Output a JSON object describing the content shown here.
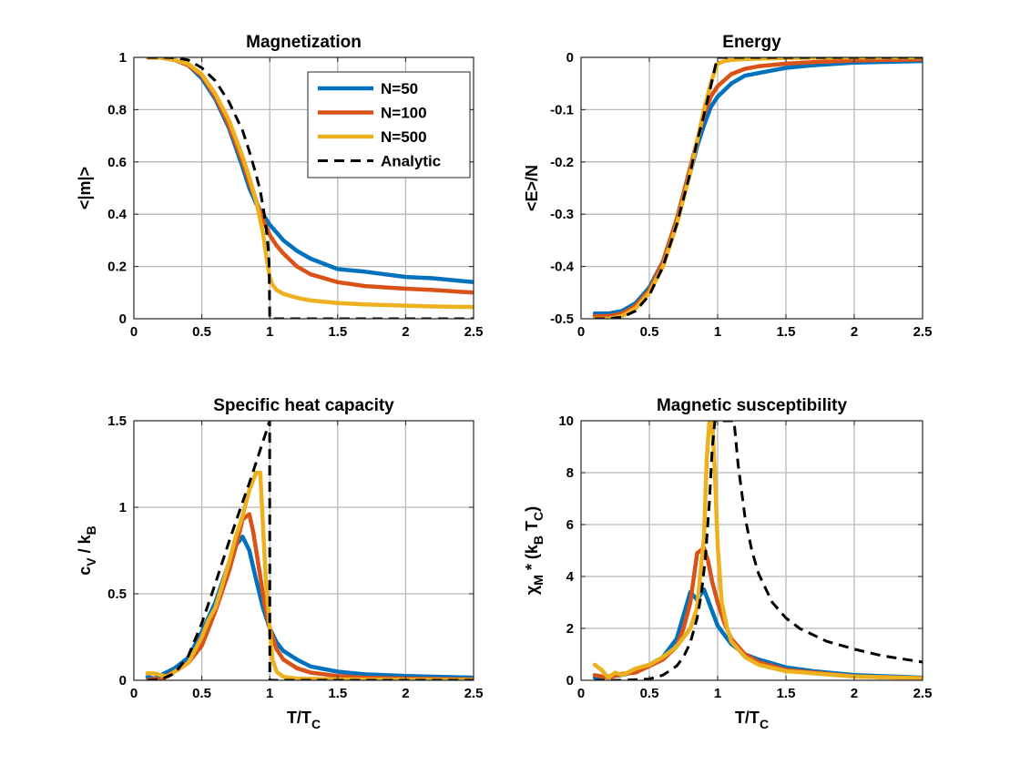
{
  "figure": {
    "background": "#ffffff",
    "colors": {
      "N=50": "#0072BD",
      "N=100": "#D95319",
      "N=500": "#EDB120",
      "Analytic": "#000000"
    }
  },
  "chart_data": [
    {
      "type": "line",
      "title": "Magnetization",
      "xlabel": "",
      "ylabel": "<|m|>",
      "xlim": [
        0,
        2.5
      ],
      "ylim": [
        0,
        1
      ],
      "xticks": [
        0,
        0.5,
        1,
        1.5,
        2,
        2.5
      ],
      "xtick_labels": [
        "0",
        "0.5",
        "1",
        "1.5",
        "2",
        "2.5"
      ],
      "yticks": [
        0,
        0.2,
        0.4,
        0.6,
        0.8,
        1
      ],
      "ytick_labels": [
        "0",
        "0.2",
        "0.4",
        "0.6",
        "0.8",
        "1"
      ],
      "grid": true,
      "legend": {
        "placement": "top-right",
        "entries": [
          "N=50",
          "N=100",
          "N=500",
          "Analytic"
        ]
      },
      "series": [
        {
          "name": "N=50",
          "color": "#0072BD",
          "dashed": false,
          "x": [
            0.1,
            0.2,
            0.3,
            0.4,
            0.5,
            0.6,
            0.7,
            0.8,
            0.85,
            0.9,
            0.95,
            1.0,
            1.05,
            1.1,
            1.2,
            1.3,
            1.5,
            1.7,
            2.0,
            2.2,
            2.5
          ],
          "y": [
            1,
            0.999,
            0.99,
            0.97,
            0.92,
            0.84,
            0.73,
            0.58,
            0.5,
            0.44,
            0.4,
            0.36,
            0.33,
            0.3,
            0.26,
            0.23,
            0.19,
            0.18,
            0.16,
            0.155,
            0.14
          ]
        },
        {
          "name": "N=100",
          "color": "#D95319",
          "dashed": false,
          "x": [
            0.1,
            0.2,
            0.3,
            0.4,
            0.5,
            0.6,
            0.7,
            0.8,
            0.85,
            0.9,
            0.95,
            1.0,
            1.05,
            1.1,
            1.2,
            1.3,
            1.5,
            1.7,
            2.0,
            2.2,
            2.5
          ],
          "y": [
            1,
            0.999,
            0.99,
            0.97,
            0.93,
            0.85,
            0.74,
            0.6,
            0.52,
            0.45,
            0.38,
            0.32,
            0.28,
            0.25,
            0.2,
            0.17,
            0.14,
            0.125,
            0.115,
            0.11,
            0.1
          ]
        },
        {
          "name": "N=500",
          "color": "#EDB120",
          "dashed": false,
          "x": [
            0.1,
            0.2,
            0.3,
            0.4,
            0.5,
            0.6,
            0.7,
            0.8,
            0.85,
            0.9,
            0.95,
            0.98,
            1.0,
            1.02,
            1.05,
            1.1,
            1.2,
            1.3,
            1.5,
            1.7,
            2.0,
            2.2,
            2.5
          ],
          "y": [
            1,
            0.999,
            0.99,
            0.975,
            0.935,
            0.86,
            0.76,
            0.62,
            0.54,
            0.45,
            0.33,
            0.22,
            0.16,
            0.13,
            0.11,
            0.095,
            0.08,
            0.07,
            0.06,
            0.055,
            0.05,
            0.047,
            0.045
          ]
        },
        {
          "name": "Analytic",
          "color": "#000000",
          "dashed": true,
          "x": [
            0.1,
            0.2,
            0.3,
            0.4,
            0.5,
            0.6,
            0.7,
            0.8,
            0.85,
            0.9,
            0.93,
            0.96,
            0.98,
            0.99,
            0.995,
            1.0,
            1.5,
            2.0,
            2.5
          ],
          "y": [
            1,
            1,
            0.999,
            0.99,
            0.96,
            0.91,
            0.83,
            0.72,
            0.64,
            0.55,
            0.49,
            0.4,
            0.32,
            0.26,
            0.21,
            0.0,
            0.0,
            0.0,
            0.0
          ]
        }
      ]
    },
    {
      "type": "line",
      "title": "Energy",
      "xlabel": "",
      "ylabel": "<E>/N",
      "xlim": [
        0,
        2.5
      ],
      "ylim": [
        -0.5,
        0
      ],
      "xticks": [
        0,
        0.5,
        1,
        1.5,
        2,
        2.5
      ],
      "xtick_labels": [
        "0",
        "0.5",
        "1",
        "1.5",
        "2",
        "2.5"
      ],
      "yticks": [
        -0.5,
        -0.4,
        -0.3,
        -0.2,
        -0.1,
        0
      ],
      "ytick_labels": [
        "-0.5",
        "-0.4",
        "-0.3",
        "-0.2",
        "-0.1",
        "0"
      ],
      "grid": true,
      "series": [
        {
          "name": "N=50",
          "color": "#0072BD",
          "dashed": false,
          "x": [
            0.1,
            0.2,
            0.3,
            0.4,
            0.5,
            0.6,
            0.7,
            0.8,
            0.85,
            0.9,
            0.95,
            1.0,
            1.1,
            1.2,
            1.3,
            1.5,
            1.7,
            2.0,
            2.5
          ],
          "y": [
            -0.49,
            -0.49,
            -0.485,
            -0.47,
            -0.44,
            -0.39,
            -0.31,
            -0.22,
            -0.17,
            -0.13,
            -0.095,
            -0.075,
            -0.05,
            -0.035,
            -0.03,
            -0.02,
            -0.015,
            -0.01,
            -0.007
          ]
        },
        {
          "name": "N=100",
          "color": "#D95319",
          "dashed": false,
          "x": [
            0.1,
            0.2,
            0.3,
            0.4,
            0.5,
            0.6,
            0.7,
            0.8,
            0.85,
            0.9,
            0.95,
            1.0,
            1.1,
            1.2,
            1.3,
            1.5,
            1.7,
            2.0,
            2.5
          ],
          "y": [
            -0.495,
            -0.495,
            -0.49,
            -0.475,
            -0.445,
            -0.39,
            -0.31,
            -0.21,
            -0.16,
            -0.11,
            -0.075,
            -0.055,
            -0.032,
            -0.022,
            -0.017,
            -0.012,
            -0.009,
            -0.006,
            -0.004
          ]
        },
        {
          "name": "N=500",
          "color": "#EDB120",
          "dashed": false,
          "x": [
            0.1,
            0.2,
            0.3,
            0.4,
            0.5,
            0.6,
            0.7,
            0.8,
            0.85,
            0.9,
            0.95,
            0.98,
            1.0,
            1.05,
            1.1,
            1.2,
            1.5,
            2.0,
            2.5
          ],
          "y": [
            -0.5,
            -0.5,
            -0.495,
            -0.48,
            -0.45,
            -0.4,
            -0.32,
            -0.22,
            -0.16,
            -0.1,
            -0.05,
            -0.025,
            -0.012,
            -0.007,
            -0.005,
            -0.003,
            -0.001,
            0,
            0
          ]
        },
        {
          "name": "Analytic",
          "color": "#000000",
          "dashed": true,
          "x": [
            0.1,
            0.2,
            0.3,
            0.4,
            0.5,
            0.6,
            0.7,
            0.8,
            0.85,
            0.9,
            0.95,
            0.98,
            1.0,
            1.5,
            2.0,
            2.5
          ],
          "y": [
            -0.5,
            -0.5,
            -0.497,
            -0.485,
            -0.455,
            -0.4,
            -0.32,
            -0.22,
            -0.16,
            -0.11,
            -0.055,
            -0.02,
            0,
            0,
            0,
            0
          ]
        }
      ]
    },
    {
      "type": "line",
      "title": "Specific heat capacity",
      "xlabel": "T/T",
      "xlabel_sub": "C",
      "ylabel": "c",
      "ylabel_sub1": "V",
      "ylabel_mid": " / k",
      "ylabel_sub2": "B",
      "xlim": [
        0,
        2.5
      ],
      "ylim": [
        0,
        1.5
      ],
      "xticks": [
        0,
        0.5,
        1,
        1.5,
        2,
        2.5
      ],
      "xtick_labels": [
        "0",
        "0.5",
        "1",
        "1.5",
        "2",
        "2.5"
      ],
      "yticks": [
        0,
        0.5,
        1,
        1.5
      ],
      "ytick_labels": [
        "0",
        "0.5",
        "1",
        "1.5"
      ],
      "grid": true,
      "series": [
        {
          "name": "N=50",
          "color": "#0072BD",
          "dashed": false,
          "x": [
            0.1,
            0.15,
            0.2,
            0.25,
            0.3,
            0.4,
            0.5,
            0.6,
            0.7,
            0.75,
            0.8,
            0.85,
            0.9,
            0.95,
            1.0,
            1.05,
            1.1,
            1.2,
            1.3,
            1.5,
            1.7,
            2.0,
            2.5
          ],
          "y": [
            0.02,
            0.01,
            0.03,
            0.05,
            0.07,
            0.13,
            0.28,
            0.45,
            0.68,
            0.78,
            0.83,
            0.75,
            0.58,
            0.42,
            0.3,
            0.22,
            0.17,
            0.12,
            0.08,
            0.05,
            0.035,
            0.025,
            0.015
          ]
        },
        {
          "name": "N=100",
          "color": "#D95319",
          "dashed": false,
          "x": [
            0.1,
            0.15,
            0.2,
            0.25,
            0.3,
            0.4,
            0.5,
            0.6,
            0.7,
            0.75,
            0.8,
            0.85,
            0.88,
            0.92,
            0.96,
            1.0,
            1.05,
            1.1,
            1.2,
            1.3,
            1.5,
            1.7,
            2.0,
            2.5
          ],
          "y": [
            0.0,
            0.01,
            0.0,
            0.03,
            0.05,
            0.1,
            0.2,
            0.4,
            0.63,
            0.77,
            0.93,
            0.96,
            0.85,
            0.65,
            0.45,
            0.3,
            0.18,
            0.12,
            0.07,
            0.045,
            0.025,
            0.015,
            0.01,
            0.005
          ]
        },
        {
          "name": "N=500",
          "color": "#EDB120",
          "dashed": false,
          "x": [
            0.1,
            0.15,
            0.2,
            0.25,
            0.3,
            0.4,
            0.5,
            0.55,
            0.6,
            0.7,
            0.75,
            0.8,
            0.85,
            0.9,
            0.93,
            0.95,
            0.97,
            1.0,
            1.02,
            1.05,
            1.1,
            1.2,
            1.5,
            2.0,
            2.5
          ],
          "y": [
            0.04,
            0.04,
            0.03,
            0.02,
            0.05,
            0.1,
            0.25,
            0.35,
            0.42,
            0.68,
            0.83,
            0.95,
            1.1,
            1.2,
            1.2,
            0.9,
            0.6,
            0.3,
            0.12,
            0.05,
            0.02,
            0.01,
            0.005,
            0.003,
            0.002
          ]
        },
        {
          "name": "Analytic",
          "color": "#000000",
          "dashed": true,
          "x": [
            0.1,
            0.2,
            0.3,
            0.4,
            0.5,
            0.6,
            0.7,
            0.8,
            0.85,
            0.9,
            0.95,
            0.98,
            0.999,
            1.001,
            1.5,
            2.0,
            2.5
          ],
          "y": [
            0,
            0.005,
            0.04,
            0.14,
            0.33,
            0.56,
            0.8,
            1.03,
            1.14,
            1.26,
            1.38,
            1.45,
            1.5,
            0,
            0,
            0,
            0
          ]
        }
      ]
    },
    {
      "type": "line",
      "title": "Magnetic susceptibility",
      "xlabel": "T/T",
      "xlabel_sub": "C",
      "ylabel": "χ",
      "ylabel_sub1": "M",
      "ylabel_mid": " * (k",
      "ylabel_sub2": "B",
      "ylabel_mid2": " T",
      "ylabel_sub3": "C",
      "ylabel_end": ")",
      "xlim": [
        0,
        2.5
      ],
      "ylim": [
        0,
        10
      ],
      "xticks": [
        0,
        0.5,
        1,
        1.5,
        2,
        2.5
      ],
      "xtick_labels": [
        "0",
        "0.5",
        "1",
        "1.5",
        "2",
        "2.5"
      ],
      "yticks": [
        0,
        2,
        4,
        6,
        8,
        10
      ],
      "ytick_labels": [
        "0",
        "2",
        "4",
        "6",
        "8",
        "10"
      ],
      "grid": true,
      "series": [
        {
          "name": "N=50",
          "color": "#0072BD",
          "dashed": false,
          "x": [
            0.1,
            0.2,
            0.3,
            0.4,
            0.5,
            0.6,
            0.7,
            0.75,
            0.8,
            0.85,
            0.9,
            0.95,
            1.0,
            1.1,
            1.2,
            1.3,
            1.5,
            1.7,
            2.0,
            2.5
          ],
          "y": [
            0.1,
            0.15,
            0.2,
            0.35,
            0.6,
            0.9,
            1.6,
            2.5,
            3.4,
            3.1,
            3.5,
            2.8,
            2.1,
            1.4,
            1.0,
            0.8,
            0.5,
            0.35,
            0.2,
            0.1
          ]
        },
        {
          "name": "N=100",
          "color": "#D95319",
          "dashed": false,
          "x": [
            0.1,
            0.2,
            0.3,
            0.4,
            0.5,
            0.6,
            0.7,
            0.75,
            0.8,
            0.85,
            0.9,
            0.93,
            0.96,
            1.0,
            1.05,
            1.1,
            1.2,
            1.3,
            1.5,
            2.0,
            2.5
          ],
          "y": [
            0.2,
            0.1,
            0.25,
            0.3,
            0.55,
            0.8,
            1.3,
            2.0,
            3.0,
            4.9,
            5.1,
            4.6,
            3.8,
            3.0,
            2.2,
            1.6,
            1.0,
            0.7,
            0.4,
            0.15,
            0.08
          ]
        },
        {
          "name": "N=500",
          "color": "#EDB120",
          "dashed": false,
          "x": [
            0.1,
            0.15,
            0.2,
            0.25,
            0.3,
            0.4,
            0.5,
            0.6,
            0.7,
            0.8,
            0.85,
            0.9,
            0.92,
            0.94,
            0.96,
            0.98,
            1.0,
            1.03,
            1.07,
            1.1,
            1.2,
            1.3,
            1.5,
            2.0,
            2.5
          ],
          "y": [
            0.6,
            0.4,
            0.1,
            0.3,
            0.2,
            0.45,
            0.6,
            0.9,
            1.3,
            2.0,
            2.8,
            5.5,
            8.5,
            10,
            10,
            8.0,
            5.2,
            3.0,
            2.0,
            1.5,
            0.9,
            0.6,
            0.35,
            0.15,
            0.08
          ]
        },
        {
          "name": "Analytic",
          "color": "#000000",
          "dashed": true,
          "x": [
            0.1,
            0.3,
            0.5,
            0.6,
            0.7,
            0.75,
            0.8,
            0.85,
            0.88,
            0.91,
            0.94,
            0.96,
            0.98,
            1.12,
            1.15,
            1.2,
            1.25,
            1.3,
            1.4,
            1.5,
            1.6,
            1.8,
            2.0,
            2.2,
            2.5
          ],
          "y": [
            0,
            0,
            0.05,
            0.2,
            0.55,
            0.9,
            1.45,
            2.4,
            3.3,
            4.7,
            6.9,
            8.9,
            10,
            10,
            8.3,
            6.3,
            5.0,
            4.1,
            3.0,
            2.4,
            2.0,
            1.5,
            1.2,
            0.95,
            0.7
          ]
        }
      ]
    }
  ]
}
